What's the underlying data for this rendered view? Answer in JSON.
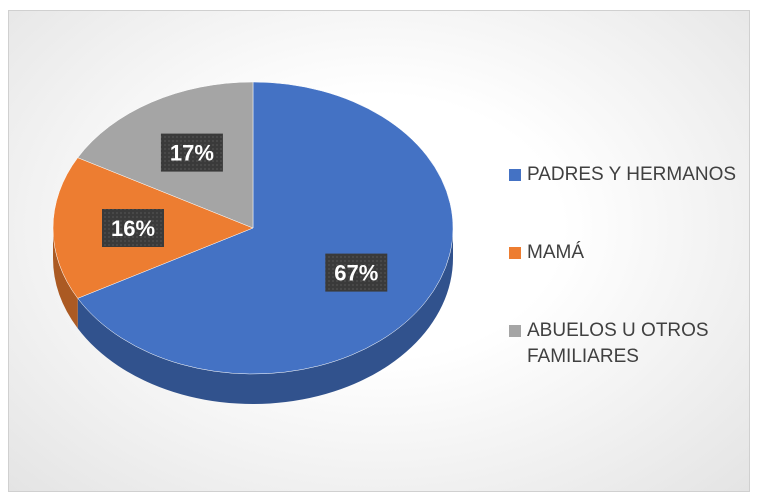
{
  "chart_data": {
    "type": "pie",
    "categories": [
      "PADRES Y HERMANOS",
      "MAMÁ",
      "ABUELOS U OTROS FAMILIARES"
    ],
    "values": [
      67,
      16,
      17
    ],
    "value_labels": [
      "67%",
      "16%",
      "17%"
    ],
    "colors": [
      "#4472c4",
      "#ed7d31",
      "#a5a5a5"
    ],
    "legend": "right"
  }
}
